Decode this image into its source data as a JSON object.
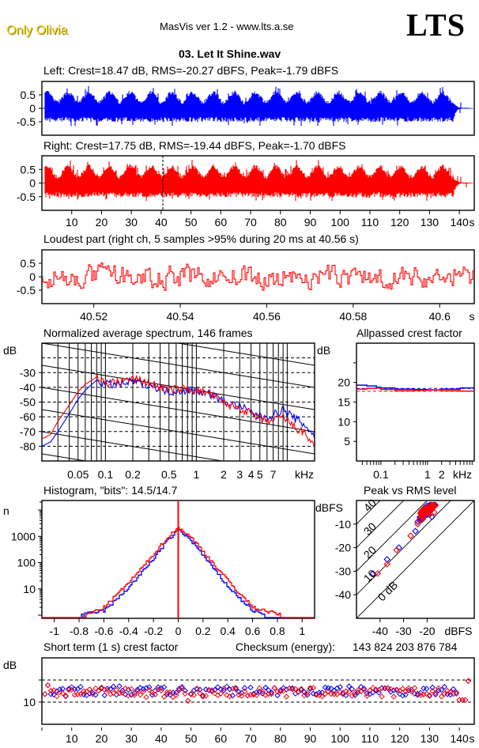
{
  "header": {
    "brand": "Only Olivia",
    "app_title": "MasVis ver 1.2 - www.lts.a.se",
    "logo": "LTS",
    "file_title": "03. Let It Shine.wav"
  },
  "colors": {
    "left": "#0000ff",
    "right": "#ff0000",
    "frame": "#000000"
  },
  "chart_data": [
    {
      "id": "left-waveform",
      "type": "area",
      "title": "Left: Crest=18.47 dB, RMS=-20.27 dBFS, Peak=-1.79 dBFS",
      "xlabel": "s",
      "xlim": [
        0,
        145
      ],
      "ylim": [
        -1,
        1
      ],
      "yticks": [
        "0.5",
        "0",
        "-0.5"
      ],
      "ytick_values": [
        0.5,
        0,
        -0.5
      ],
      "envelope_peak": 0.6,
      "fade_out_start_s": 138,
      "end_s": 145
    },
    {
      "id": "right-waveform",
      "type": "area",
      "title": "Right: Crest=17.75 dB, RMS=-19.44 dBFS, Peak=-1.70 dBFS",
      "xlabel": "s",
      "xlim": [
        0,
        145
      ],
      "ylim": [
        -1,
        1
      ],
      "yticks": [
        "0.5",
        "0",
        "-0.5"
      ],
      "ytick_values": [
        0.5,
        0,
        -0.5
      ],
      "xticks": [
        "10",
        "20",
        "30",
        "40",
        "50",
        "60",
        "70",
        "80",
        "90",
        "100",
        "110",
        "120",
        "130",
        "140"
      ],
      "xtick_values": [
        10,
        20,
        30,
        40,
        50,
        60,
        70,
        80,
        90,
        100,
        110,
        120,
        130,
        140
      ],
      "x_unit": "s",
      "marker_s": 40.56,
      "envelope_peak": 0.62,
      "fade_out_start_s": 138,
      "end_s": 145
    },
    {
      "id": "loudest-part",
      "type": "line",
      "title": "Loudest part (right ch, 5 samples >95% during 20 ms at 40.56 s)",
      "xlim": [
        40.508,
        40.608
      ],
      "ylim": [
        -1,
        1
      ],
      "yticks": [
        "0.5",
        "0",
        "-0.5"
      ],
      "ytick_values": [
        0.5,
        0,
        -0.5
      ],
      "xticks": [
        "40.52",
        "40.54",
        "40.56",
        "40.58",
        "40.6"
      ],
      "xtick_values": [
        40.52,
        40.54,
        40.56,
        40.58,
        40.6
      ],
      "x_unit": "s"
    },
    {
      "id": "spectrum",
      "type": "line",
      "title": "Normalized average spectrum, 146 frames",
      "ylabel": "dB",
      "xlabel": "kHz",
      "xscale": "log",
      "xlim": [
        0.02,
        20
      ],
      "ylim": [
        -90,
        -10
      ],
      "yticks": [
        "-30",
        "-40",
        "-50",
        "-60",
        "-70",
        "-80"
      ],
      "ytick_values": [
        -30,
        -40,
        -50,
        -60,
        -70,
        -80
      ],
      "xticks": [
        "0.05",
        "0.1",
        "0.2",
        "0.5",
        "1",
        "2",
        "3",
        "4",
        "5",
        "7",
        "kHz"
      ],
      "xtick_values": [
        0.05,
        0.1,
        0.2,
        0.5,
        1,
        2,
        3,
        4,
        5,
        7
      ],
      "series": [
        {
          "name": "Left",
          "color": "#0000ff",
          "x": [
            0.02,
            0.025,
            0.03,
            0.04,
            0.05,
            0.06,
            0.08,
            0.1,
            0.15,
            0.2,
            0.3,
            0.5,
            0.7,
            1,
            1.5,
            2,
            3,
            4,
            5,
            7,
            9,
            12,
            16,
            20
          ],
          "y": [
            -80,
            -77,
            -70,
            -58,
            -48,
            -42,
            -35,
            -38,
            -38,
            -36,
            -38,
            -43,
            -42,
            -42,
            -45,
            -50,
            -53,
            -57,
            -60,
            -59,
            -55,
            -61,
            -66,
            -73
          ]
        },
        {
          "name": "Right",
          "color": "#ff0000",
          "x": [
            0.02,
            0.025,
            0.03,
            0.04,
            0.05,
            0.06,
            0.08,
            0.1,
            0.15,
            0.2,
            0.3,
            0.5,
            0.7,
            1,
            1.5,
            2,
            3,
            4,
            5,
            7,
            9,
            12,
            16,
            20
          ],
          "y": [
            -75,
            -72,
            -63,
            -52,
            -43,
            -38,
            -33,
            -37,
            -36,
            -34,
            -37,
            -42,
            -41,
            -42,
            -45,
            -51,
            -54,
            -58,
            -62,
            -63,
            -60,
            -67,
            -72,
            -80
          ]
        }
      ]
    },
    {
      "id": "allpassed-crest",
      "type": "line",
      "title": "Allpassed crest factor",
      "ylabel": "dB",
      "xlabel": "kHz",
      "xscale": "log",
      "xlim": [
        0.03,
        10
      ],
      "ylim": [
        0,
        30
      ],
      "yticks": [
        "20",
        "15",
        "10",
        "5"
      ],
      "ytick_values": [
        20,
        15,
        10,
        5
      ],
      "xticks": [
        "0.1",
        "1",
        "2",
        "kHz"
      ],
      "xtick_values": [
        0.1,
        1,
        2
      ],
      "series": [
        {
          "name": "Left",
          "color": "#0000ff",
          "x": [
            0.03,
            0.05,
            0.08,
            0.1,
            0.2,
            0.5,
            1,
            2,
            5,
            10
          ],
          "y": [
            19.3,
            19.1,
            18.8,
            18.6,
            18.3,
            18.2,
            18.1,
            18.3,
            18.6,
            18.6
          ],
          "reference": 18.47
        },
        {
          "name": "Right",
          "color": "#ff0000",
          "x": [
            0.03,
            0.05,
            0.08,
            0.1,
            0.2,
            0.5,
            1,
            2,
            5,
            10
          ],
          "y": [
            18.3,
            18.5,
            18.6,
            18.2,
            17.9,
            18.0,
            18.1,
            17.9,
            17.8,
            17.8
          ],
          "reference": 17.75
        }
      ]
    },
    {
      "id": "histogram",
      "type": "line",
      "title": "Histogram, \"bits\": 14.5/14.7",
      "ylabel": "n",
      "yscale": "log",
      "ylim": [
        1,
        20000
      ],
      "xlim": [
        -1.1,
        1.1
      ],
      "yticks": [
        "1000",
        "100",
        "10"
      ],
      "ytick_values": [
        1000,
        100,
        10
      ],
      "xticks": [
        "-1",
        "-0.8",
        "-0.6",
        "-0.4",
        "-0.2",
        "0",
        "0.2",
        "0.4",
        "0.6",
        "0.8",
        "1"
      ],
      "xtick_values": [
        -1,
        -0.8,
        -0.6,
        -0.4,
        -0.2,
        0,
        0.2,
        0.4,
        0.6,
        0.8,
        1
      ],
      "series": [
        {
          "name": "Left",
          "color": "#0000ff",
          "x": [
            -0.8,
            -0.6,
            -0.5,
            -0.4,
            -0.3,
            -0.2,
            -0.1,
            0,
            0.1,
            0.2,
            0.3,
            0.4,
            0.5,
            0.6,
            0.7
          ],
          "y": [
            1,
            1.5,
            4,
            12,
            40,
            150,
            600,
            1800,
            700,
            180,
            45,
            12,
            4,
            1.5,
            1
          ]
        },
        {
          "name": "Right",
          "color": "#ff0000",
          "x": [
            -0.75,
            -0.6,
            -0.5,
            -0.4,
            -0.3,
            -0.2,
            -0.1,
            0,
            0.1,
            0.2,
            0.3,
            0.4,
            0.5,
            0.6,
            0.83
          ],
          "y": [
            1,
            2,
            6,
            18,
            60,
            220,
            800,
            2200,
            900,
            260,
            70,
            20,
            6,
            2,
            1
          ]
        }
      ]
    },
    {
      "id": "peak-vs-rms",
      "type": "scatter",
      "title": "Peak vs RMS level",
      "xlabel": "dBFS",
      "ylabel": "dBFS",
      "xlim": [
        -50,
        0
      ],
      "ylim": [
        -50,
        0
      ],
      "xticks": [
        "-40",
        "-30",
        "-20",
        "dBFS"
      ],
      "xtick_values": [
        -40,
        -30,
        -20
      ],
      "yticks": [
        "-10",
        "-20",
        "-30",
        "-40"
      ],
      "ytick_values": [
        -10,
        -20,
        -30,
        -40
      ],
      "crest_lines": [
        "0 dB",
        "10",
        "20",
        "30",
        "40"
      ],
      "crest_line_values": [
        0,
        10,
        20,
        30,
        40
      ],
      "series": [
        {
          "name": "Left",
          "color": "#0000ff",
          "x": [
            -43,
            -37,
            -32,
            -25,
            -24,
            -23,
            -22,
            -21,
            -20,
            -19,
            -18
          ],
          "y": [
            -31,
            -25,
            -20,
            -13,
            -9,
            -7,
            -5,
            -3,
            -6,
            -4,
            -7
          ]
        },
        {
          "name": "Right",
          "color": "#ff0000",
          "x": [
            -41,
            -37,
            -33,
            -27,
            -24,
            -23,
            -22,
            -21,
            -20,
            -19,
            -18,
            -17
          ],
          "y": [
            -31,
            -27,
            -21,
            -15,
            -10,
            -8,
            -6,
            -5,
            -4,
            -6,
            -3,
            -5
          ]
        }
      ]
    },
    {
      "id": "short-term-crest",
      "type": "scatter",
      "title": "Short term (1 s) crest factor",
      "checksum_label": "Checksum (energy):",
      "checksum_value": "143 824 203 876 784",
      "ylabel": "dB",
      "ylim": [
        5,
        20
      ],
      "xlim": [
        0,
        145
      ],
      "yticks": [
        "10"
      ],
      "ytick_values": [
        10
      ],
      "reference_lines": [
        10,
        15
      ],
      "xticks": [
        "10",
        "20",
        "30",
        "40",
        "50",
        "60",
        "70",
        "80",
        "90",
        "100",
        "110",
        "120",
        "130",
        "140"
      ],
      "xtick_values": [
        10,
        20,
        30,
        40,
        50,
        60,
        70,
        80,
        90,
        100,
        110,
        120,
        130,
        140
      ],
      "x_unit": "s",
      "series": [
        {
          "name": "Left",
          "color": "#0000ff",
          "mean": 12.5
        },
        {
          "name": "Right",
          "color": "#ff0000",
          "mean": 12.2
        }
      ]
    }
  ]
}
